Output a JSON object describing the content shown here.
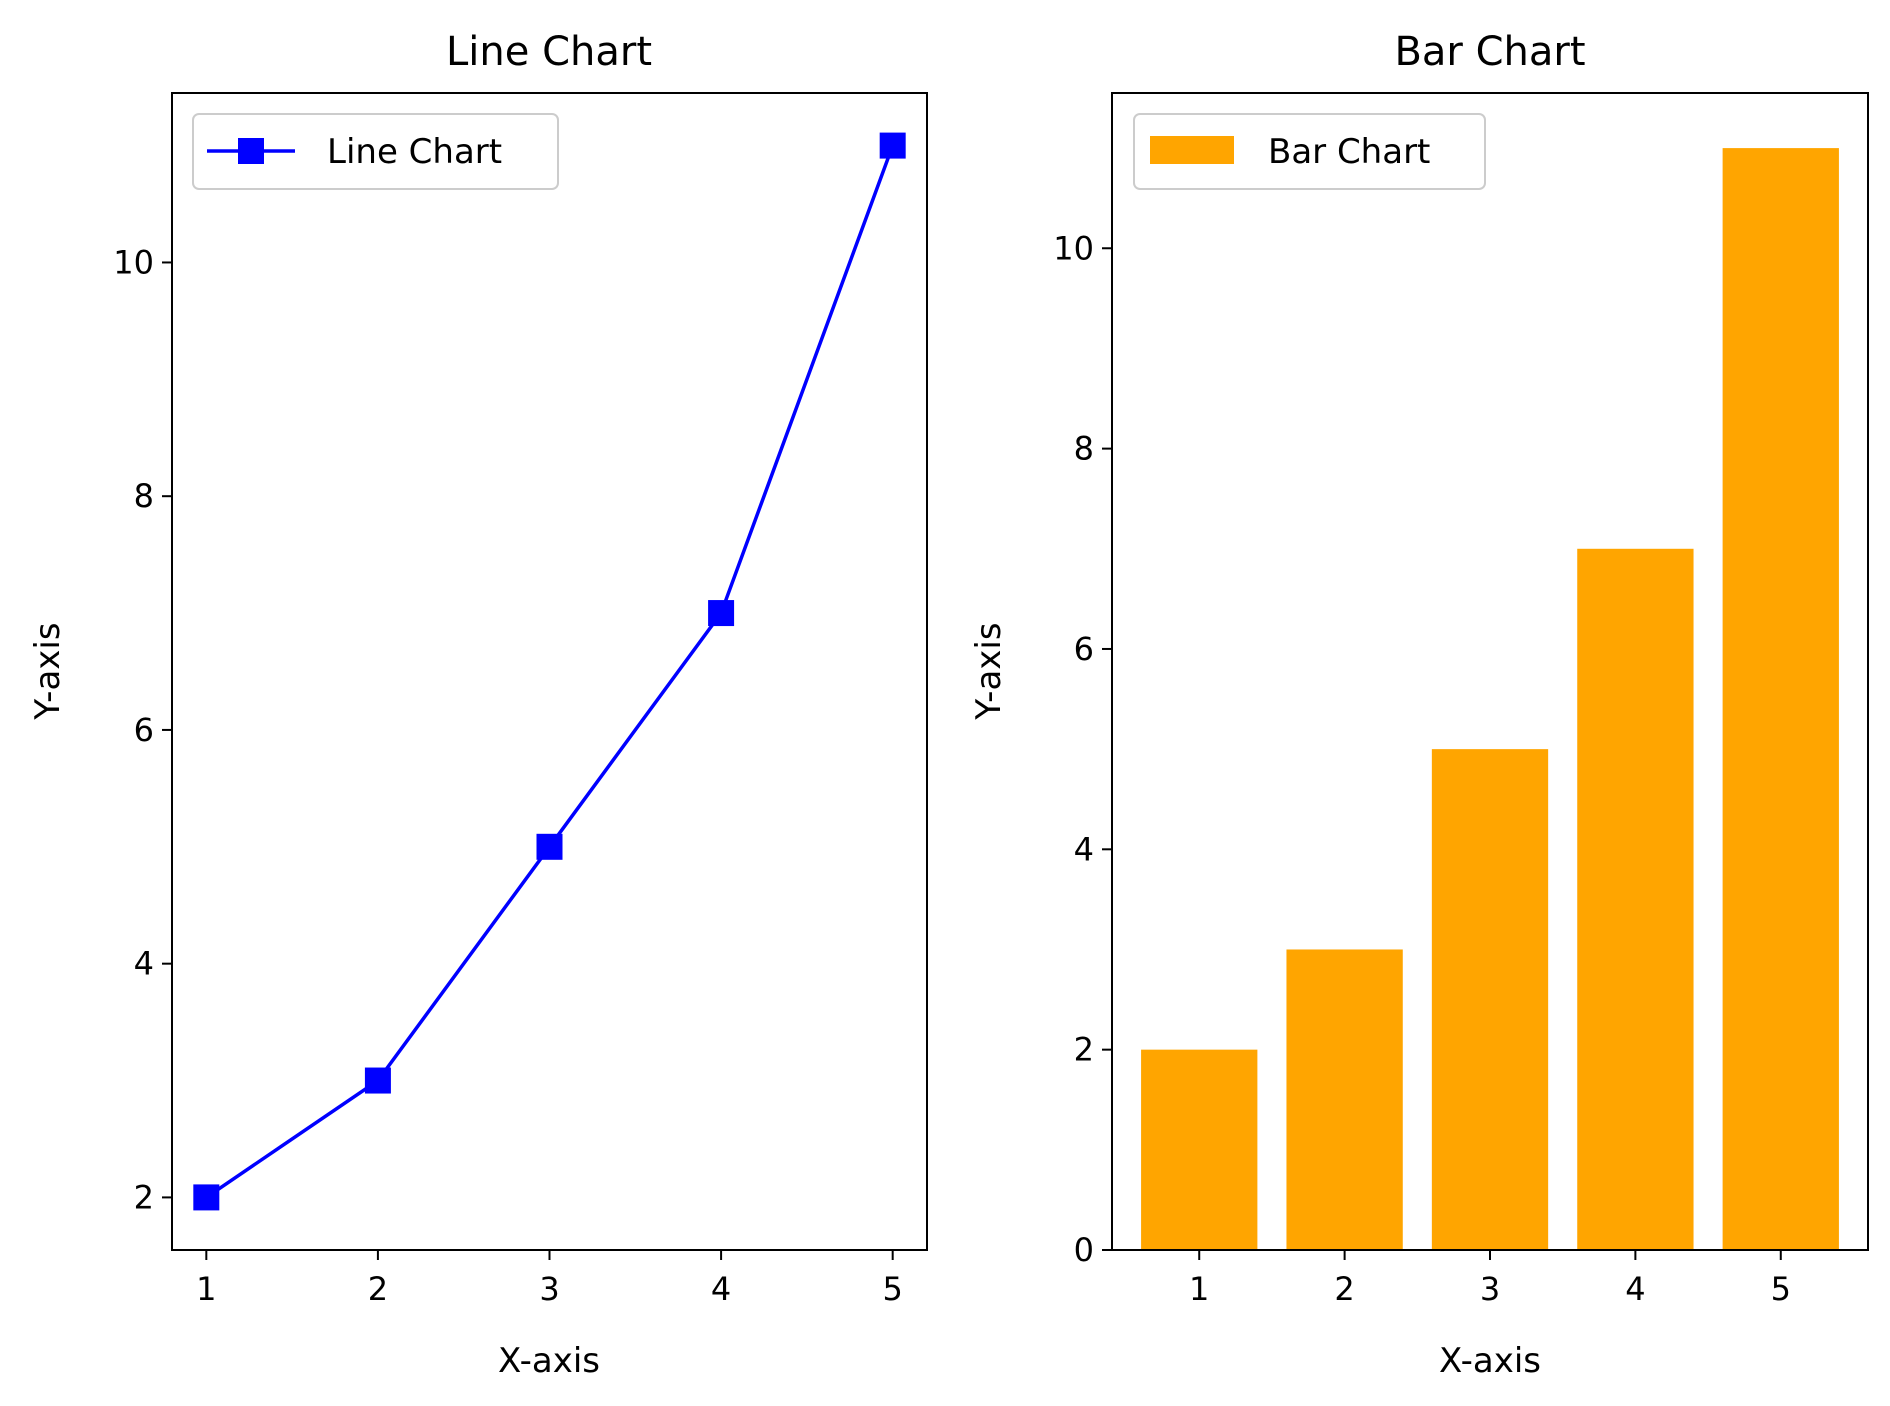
{
  "chart_data": [
    {
      "type": "line",
      "title": "Line Chart",
      "xlabel": "X-axis",
      "ylabel": "Y-axis",
      "x": [
        1,
        2,
        3,
        4,
        5
      ],
      "xlim": [
        0.8,
        5.2
      ],
      "ylim": [
        1.55,
        11.45
      ],
      "xticks": [
        1,
        2,
        3,
        4,
        5
      ],
      "yticks": [
        2,
        4,
        6,
        8,
        10
      ],
      "grid": false,
      "legend_position": "top-left",
      "series": [
        {
          "name": "Line Chart",
          "values": [
            2,
            3,
            5,
            7,
            11
          ],
          "color": "#0000ff",
          "marker": "square"
        }
      ]
    },
    {
      "type": "bar",
      "title": "Bar Chart",
      "xlabel": "X-axis",
      "ylabel": "Y-axis",
      "categories": [
        1,
        2,
        3,
        4,
        5
      ],
      "xlim": [
        0.4,
        5.6
      ],
      "ylim": [
        0,
        11.55
      ],
      "yticks": [
        0,
        2,
        4,
        6,
        8,
        10
      ],
      "grid": false,
      "legend_position": "top-left",
      "series": [
        {
          "name": "Bar Chart",
          "values": [
            2,
            3,
            5,
            7,
            11
          ],
          "color": "#ffa500"
        }
      ]
    }
  ]
}
